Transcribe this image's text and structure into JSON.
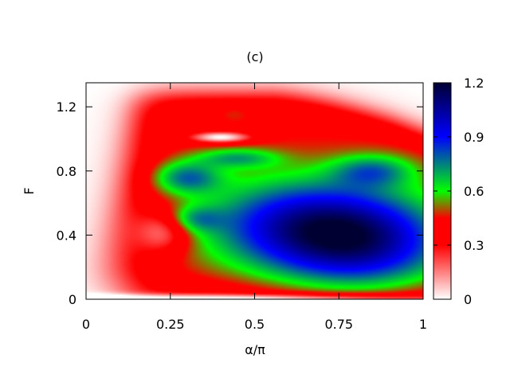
{
  "chart_data": {
    "type": "heatmap",
    "title": "(c)",
    "xlabel": "α/π",
    "ylabel": "F",
    "xlim": [
      0,
      1
    ],
    "ylim": [
      0,
      1.35
    ],
    "xticks": [
      {
        "value": 0,
        "label": "0"
      },
      {
        "value": 0.25,
        "label": "0.25"
      },
      {
        "value": 0.5,
        "label": "0.5"
      },
      {
        "value": 0.75,
        "label": "0.75"
      },
      {
        "value": 1,
        "label": "1"
      }
    ],
    "yticks": [
      {
        "value": 0,
        "label": "0"
      },
      {
        "value": 0.4,
        "label": "0.4"
      },
      {
        "value": 0.8,
        "label": "0.8"
      },
      {
        "value": 1.2,
        "label": "1.2"
      }
    ],
    "colorbar": {
      "range": [
        0,
        1.2
      ],
      "ticks": [
        {
          "value": 0,
          "label": "0"
        },
        {
          "value": 0.3,
          "label": "0.3"
        },
        {
          "value": 0.6,
          "label": "0.6"
        },
        {
          "value": 0.9,
          "label": "0.9"
        },
        {
          "value": 1.2,
          "label": "1.2"
        }
      ],
      "palette": [
        {
          "value": 0.0,
          "color": "#ffffff"
        },
        {
          "value": 0.3,
          "color": "#ff0000"
        },
        {
          "value": 0.45,
          "color": "#ff0000"
        },
        {
          "value": 0.6,
          "color": "#00ff00"
        },
        {
          "value": 0.9,
          "color": "#0000ff"
        },
        {
          "value": 1.2,
          "color": "#000033"
        }
      ]
    },
    "grid": false
  }
}
